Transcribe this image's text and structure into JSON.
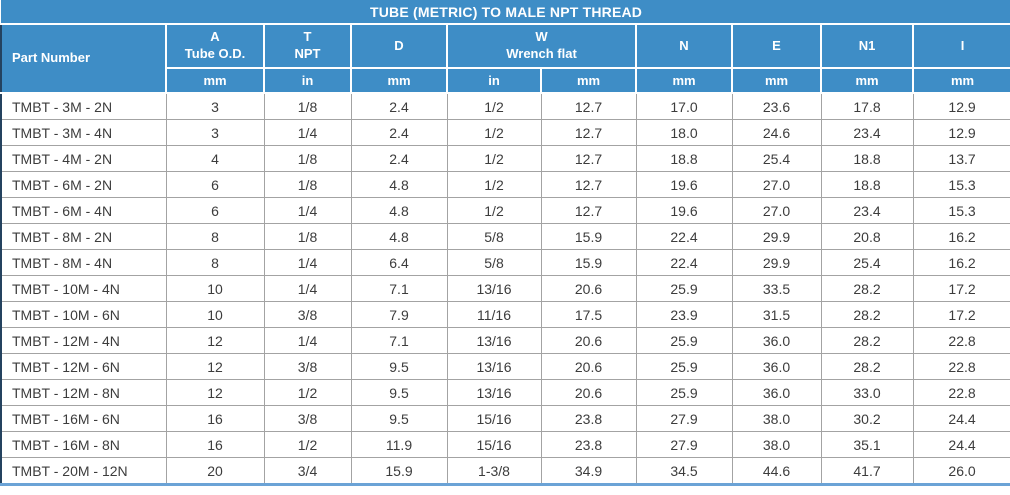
{
  "title": "TUBE (METRIC) TO MALE NPT THREAD",
  "colors": {
    "header_blue": "#3e8dc6",
    "header_text": "#ffffff",
    "grid_border": "#a3a3a3",
    "header_underline": "#454545",
    "left_border": "#24425f",
    "bottom_border": "#6ba3d6",
    "cell_text": "#3c3c3c"
  },
  "chart_data": {
    "type": "table",
    "title": "TUBE (METRIC) TO MALE NPT THREAD",
    "header": {
      "part_number": "Part Number",
      "groups": [
        {
          "label": "A",
          "sublabel": "Tube O.D."
        },
        {
          "label": "T",
          "sublabel": "NPT"
        },
        {
          "label": "D",
          "sublabel": ""
        },
        {
          "label": "W",
          "sublabel": "Wrench flat"
        },
        {
          "label": "N",
          "sublabel": ""
        },
        {
          "label": "E",
          "sublabel": ""
        },
        {
          "label": "N1",
          "sublabel": ""
        },
        {
          "label": "I",
          "sublabel": ""
        }
      ],
      "units": [
        "mm",
        "in",
        "mm",
        "in",
        "mm",
        "mm",
        "mm",
        "mm",
        "mm"
      ]
    },
    "rows": [
      [
        "TMBT - 3M - 2N",
        "3",
        "1/8",
        "2.4",
        "1/2",
        "12.7",
        "17.0",
        "23.6",
        "17.8",
        "12.9"
      ],
      [
        "TMBT - 3M - 4N",
        "3",
        "1/4",
        "2.4",
        "1/2",
        "12.7",
        "18.0",
        "24.6",
        "23.4",
        "12.9"
      ],
      [
        "TMBT - 4M - 2N",
        "4",
        "1/8",
        "2.4",
        "1/2",
        "12.7",
        "18.8",
        "25.4",
        "18.8",
        "13.7"
      ],
      [
        "TMBT - 6M - 2N",
        "6",
        "1/8",
        "4.8",
        "1/2",
        "12.7",
        "19.6",
        "27.0",
        "18.8",
        "15.3"
      ],
      [
        "TMBT - 6M - 4N",
        "6",
        "1/4",
        "4.8",
        "1/2",
        "12.7",
        "19.6",
        "27.0",
        "23.4",
        "15.3"
      ],
      [
        "TMBT - 8M - 2N",
        "8",
        "1/8",
        "4.8",
        "5/8",
        "15.9",
        "22.4",
        "29.9",
        "20.8",
        "16.2"
      ],
      [
        "TMBT - 8M - 4N",
        "8",
        "1/4",
        "6.4",
        "5/8",
        "15.9",
        "22.4",
        "29.9",
        "25.4",
        "16.2"
      ],
      [
        "TMBT - 10M - 4N",
        "10",
        "1/4",
        "7.1",
        "13/16",
        "20.6",
        "25.9",
        "33.5",
        "28.2",
        "17.2"
      ],
      [
        "TMBT - 10M - 6N",
        "10",
        "3/8",
        "7.9",
        "11/16",
        "17.5",
        "23.9",
        "31.5",
        "28.2",
        "17.2"
      ],
      [
        "TMBT - 12M - 4N",
        "12",
        "1/4",
        "7.1",
        "13/16",
        "20.6",
        "25.9",
        "36.0",
        "28.2",
        "22.8"
      ],
      [
        "TMBT - 12M - 6N",
        "12",
        "3/8",
        "9.5",
        "13/16",
        "20.6",
        "25.9",
        "36.0",
        "28.2",
        "22.8"
      ],
      [
        "TMBT - 12M - 8N",
        "12",
        "1/2",
        "9.5",
        "13/16",
        "20.6",
        "25.9",
        "36.0",
        "33.0",
        "22.8"
      ],
      [
        "TMBT - 16M - 6N",
        "16",
        "3/8",
        "9.5",
        "15/16",
        "23.8",
        "27.9",
        "38.0",
        "30.2",
        "24.4"
      ],
      [
        "TMBT - 16M - 8N",
        "16",
        "1/2",
        "11.9",
        "15/16",
        "23.8",
        "27.9",
        "38.0",
        "35.1",
        "24.4"
      ],
      [
        "TMBT - 20M - 12N",
        "20",
        "3/4",
        "15.9",
        "1-3/8",
        "34.9",
        "34.5",
        "44.6",
        "41.7",
        "26.0"
      ]
    ]
  }
}
